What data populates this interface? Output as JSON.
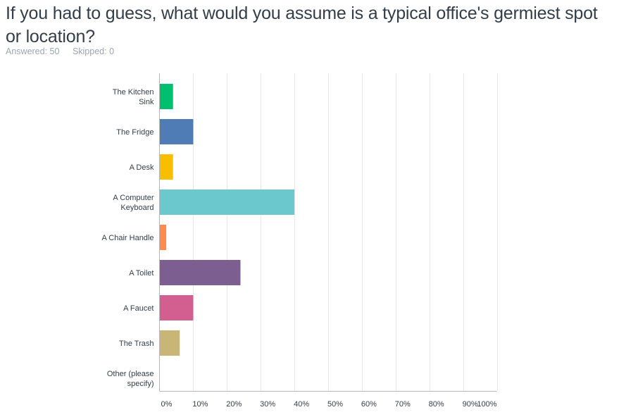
{
  "question": {
    "title": "If you had to guess, what would you assume is a typical office's germiest spot or location?"
  },
  "stats": {
    "answered_label": "Answered:",
    "answered_value": "50",
    "skipped_label": "Skipped:",
    "skipped_value": "0"
  },
  "chart_data": {
    "type": "bar",
    "orientation": "horizontal",
    "title": "If you had to guess, what would you assume is a typical office's germiest spot or location?",
    "xlabel": "",
    "ylabel": "",
    "xlim": [
      0,
      100
    ],
    "grid": true,
    "legend": "none",
    "categories": [
      [
        "The Kitchen",
        "Sink"
      ],
      [
        "The Fridge"
      ],
      [
        "A Desk"
      ],
      [
        "A Computer",
        "Keyboard"
      ],
      [
        "A Chair Handle"
      ],
      [
        "A Toilet"
      ],
      [
        "A Faucet"
      ],
      [
        "The Trash"
      ],
      [
        "Other (please",
        "specify)"
      ]
    ],
    "values": [
      4,
      10,
      4,
      40,
      2,
      24,
      10,
      6,
      0
    ],
    "colors": [
      "#00bf6f",
      "#507cb6",
      "#f9be00",
      "#6bc8cd",
      "#ff8b4f",
      "#7d5e90",
      "#d25f90",
      "#c9b677",
      "#95d5d2"
    ],
    "xticks": [
      "0%",
      "10%",
      "20%",
      "30%",
      "40%",
      "50%",
      "60%",
      "70%",
      "80%",
      "90%",
      "100%"
    ]
  }
}
